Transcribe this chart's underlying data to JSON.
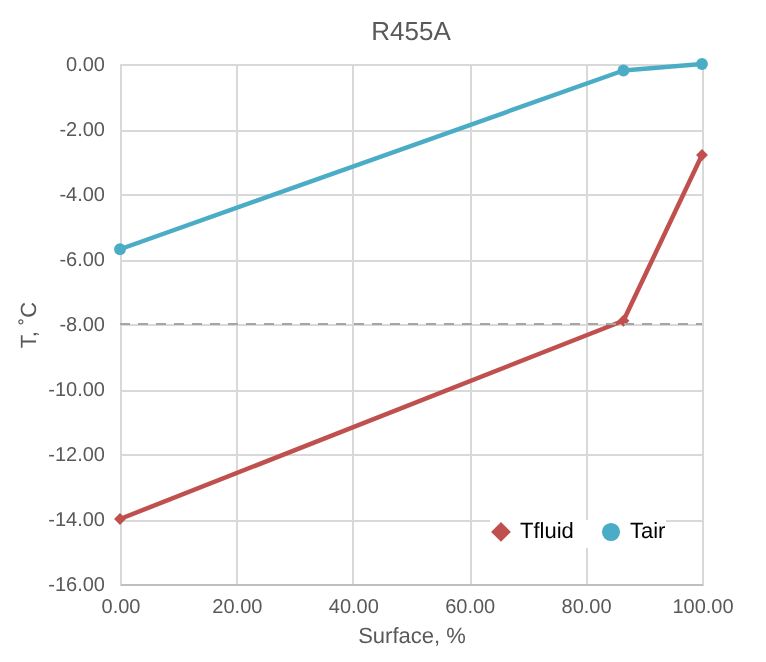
{
  "chart_data": {
    "type": "line",
    "title": "R455A",
    "xlabel": "Surface, %",
    "ylabel": "T, ˚C",
    "x": [
      0,
      86.5,
      100
    ],
    "series": [
      {
        "name": "Tfluid",
        "color": "#c0504d",
        "marker": "diamond",
        "values": [
          -14,
          -7.9,
          -2.8
        ]
      },
      {
        "name": "Tair",
        "color": "#4bacc6",
        "marker": "circle",
        "values": [
          -5.7,
          -0.2,
          0
        ]
      }
    ],
    "xlim": [
      0,
      100
    ],
    "xticks": [
      {
        "value": 0,
        "label": "0.00"
      },
      {
        "value": 20,
        "label": "20.00"
      },
      {
        "value": 40,
        "label": "40.00"
      },
      {
        "value": 60,
        "label": "60.00"
      },
      {
        "value": 80,
        "label": "80.00"
      },
      {
        "value": 100,
        "label": "100.00"
      }
    ],
    "ylim": [
      -16,
      0
    ],
    "yticks": [
      {
        "value": -16,
        "label": "-16.00"
      },
      {
        "value": -14,
        "label": "-14.00"
      },
      {
        "value": -12,
        "label": "-12.00"
      },
      {
        "value": -10,
        "label": "-10.00"
      },
      {
        "value": -8,
        "label": "-8.00"
      },
      {
        "value": -6,
        "label": "-6.00"
      },
      {
        "value": -4,
        "label": "-4.00"
      },
      {
        "value": -2,
        "label": "-2.00"
      },
      {
        "value": 0,
        "label": "0.00"
      }
    ],
    "ref_lines": [
      {
        "axis": "y",
        "value": -8,
        "color": "#a6a6a6",
        "line_style": "dashed"
      }
    ],
    "grid": true,
    "legend": "bottom right",
    "line_style": "solid"
  }
}
